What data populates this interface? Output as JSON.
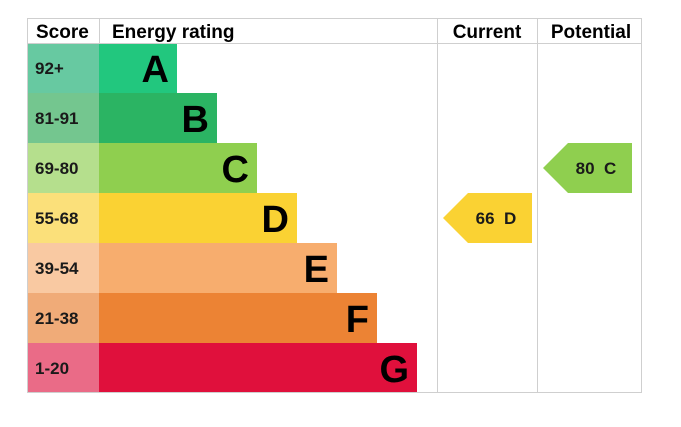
{
  "chart_data": {
    "type": "table",
    "headers": {
      "score": "Score",
      "rating": "Energy rating",
      "current": "Current",
      "potential": "Potential"
    },
    "bands": [
      {
        "range": "92+",
        "letter": "A",
        "color": "#22c77e",
        "score_color": "#67c9a1"
      },
      {
        "range": "81-91",
        "letter": "B",
        "color": "#2bb463",
        "score_color": "#74c68f"
      },
      {
        "range": "69-80",
        "letter": "C",
        "color": "#8fcf4f",
        "score_color": "#b5df8d"
      },
      {
        "range": "55-68",
        "letter": "D",
        "color": "#fad233",
        "score_color": "#fbe07a"
      },
      {
        "range": "39-54",
        "letter": "E",
        "color": "#f7ad6e",
        "score_color": "#f9c9a2"
      },
      {
        "range": "21-38",
        "letter": "F",
        "color": "#ec8334",
        "score_color": "#f0ab78"
      },
      {
        "range": "1-20",
        "letter": "G",
        "color": "#e0103c",
        "score_color": "#ea6b87"
      }
    ],
    "current": {
      "value": 66,
      "letter": "D",
      "label": "66  D",
      "color": "#fad233"
    },
    "potential": {
      "value": 80,
      "letter": "C",
      "label": "80  C",
      "color": "#8fcf4f"
    }
  }
}
